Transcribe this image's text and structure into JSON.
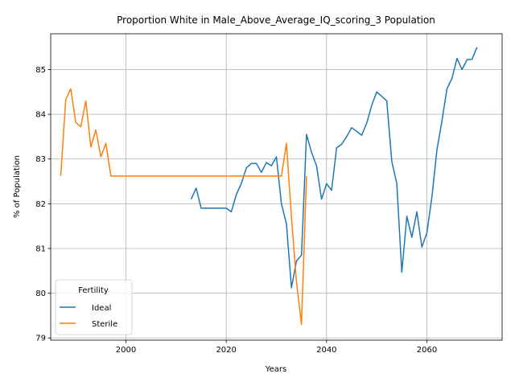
{
  "chart_data": {
    "type": "line",
    "title": "Proportion White in Male_Above_Average_IQ_scoring_3 Population",
    "xlabel": "Years",
    "ylabel": "% of Population",
    "xlim": [
      1985,
      2075
    ],
    "ylim": [
      78.95,
      85.8
    ],
    "xticks": [
      2000,
      2020,
      2040,
      2060
    ],
    "yticks": [
      79,
      80,
      81,
      82,
      83,
      84,
      85
    ],
    "grid": true,
    "legend": {
      "title": "Fertility",
      "position": "lower-left"
    },
    "series": [
      {
        "name": "Ideal",
        "color": "#1f77b4",
        "x": [
          2013,
          2014,
          2015,
          2016,
          2017,
          2018,
          2019,
          2020,
          2021,
          2022,
          2023,
          2024,
          2025,
          2026,
          2027,
          2028,
          2029,
          2030,
          2031,
          2032,
          2033,
          2034,
          2035,
          2036,
          2037,
          2038,
          2039,
          2040,
          2041,
          2042,
          2043,
          2044,
          2045,
          2046,
          2047,
          2048,
          2049,
          2050,
          2051,
          2052,
          2053,
          2054,
          2055,
          2056,
          2057,
          2058,
          2059,
          2060,
          2061,
          2062,
          2063,
          2064,
          2065,
          2066,
          2067,
          2068,
          2069,
          2070
        ],
        "values": [
          82.1,
          82.35,
          81.9,
          81.9,
          81.9,
          81.9,
          81.9,
          81.9,
          81.82,
          82.2,
          82.45,
          82.8,
          82.9,
          82.9,
          82.7,
          82.92,
          82.85,
          83.05,
          82.0,
          81.55,
          80.12,
          80.72,
          80.85,
          83.55,
          83.15,
          82.85,
          82.1,
          82.45,
          82.3,
          83.25,
          83.33,
          83.5,
          83.7,
          83.62,
          83.53,
          83.8,
          84.2,
          84.5,
          84.4,
          84.3,
          82.95,
          82.45,
          80.47,
          81.72,
          81.25,
          81.82,
          81.03,
          81.35,
          82.15,
          83.2,
          83.85,
          84.57,
          84.8,
          85.25,
          85.0,
          85.22,
          85.23,
          85.5
        ]
      },
      {
        "name": "Sterile",
        "color": "#ff7f0e",
        "x": [
          1987,
          1988,
          1989,
          1990,
          1991,
          1992,
          1993,
          1994,
          1995,
          1996,
          1997,
          1998,
          2000,
          2010,
          2020,
          2025,
          2028,
          2030,
          2031,
          2032,
          2033,
          2034,
          2035,
          2036
        ],
        "values": [
          82.62,
          84.33,
          84.57,
          83.82,
          83.72,
          84.3,
          83.27,
          83.65,
          83.05,
          83.35,
          82.62,
          82.62,
          82.62,
          82.62,
          82.62,
          82.62,
          82.62,
          82.62,
          82.62,
          83.35,
          81.7,
          80.25,
          79.3,
          82.62
        ]
      }
    ]
  }
}
